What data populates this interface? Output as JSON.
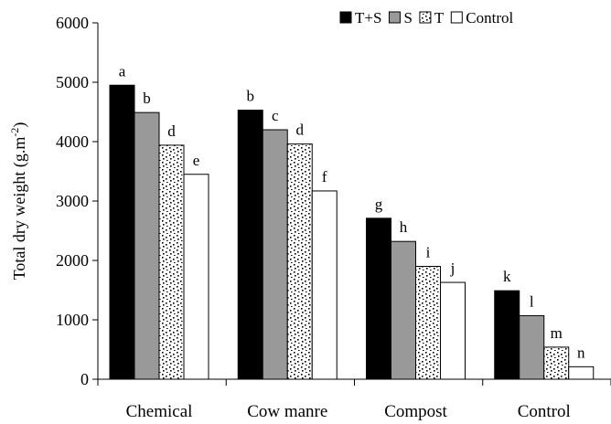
{
  "chart_data": {
    "type": "bar",
    "categories": [
      "Chemical",
      "Cow manre",
      "Compost",
      "Control"
    ],
    "series": [
      {
        "name": "T+S",
        "values": [
          4950,
          4530,
          2710,
          1490
        ],
        "letters": [
          "a",
          "b",
          "g",
          "k"
        ],
        "style": "solid",
        "color": "#000000"
      },
      {
        "name": "S",
        "values": [
          4490,
          4200,
          2320,
          1070
        ],
        "letters": [
          "b",
          "c",
          "h",
          "l"
        ],
        "style": "solid",
        "color": "#999999"
      },
      {
        "name": "T",
        "values": [
          3940,
          3960,
          1900,
          540
        ],
        "letters": [
          "d",
          "d",
          "i",
          "m"
        ],
        "style": "dotted-pattern",
        "color": "#ffffff"
      },
      {
        "name": "Control",
        "values": [
          3450,
          3170,
          1630,
          210
        ],
        "letters": [
          "e",
          "f",
          "j",
          "n"
        ],
        "style": "solid",
        "color": "#ffffff"
      }
    ],
    "ylabel": "Total dry weight (g.m-2)",
    "ylabel_parts": {
      "main": "Total dry weight (g.m",
      "sup": "-2",
      "close": ")"
    },
    "ylim": [
      0,
      6000
    ],
    "yticks": [
      0,
      1000,
      2000,
      3000,
      4000,
      5000,
      6000
    ],
    "legend": {
      "position": "top-right"
    },
    "grid": false
  }
}
